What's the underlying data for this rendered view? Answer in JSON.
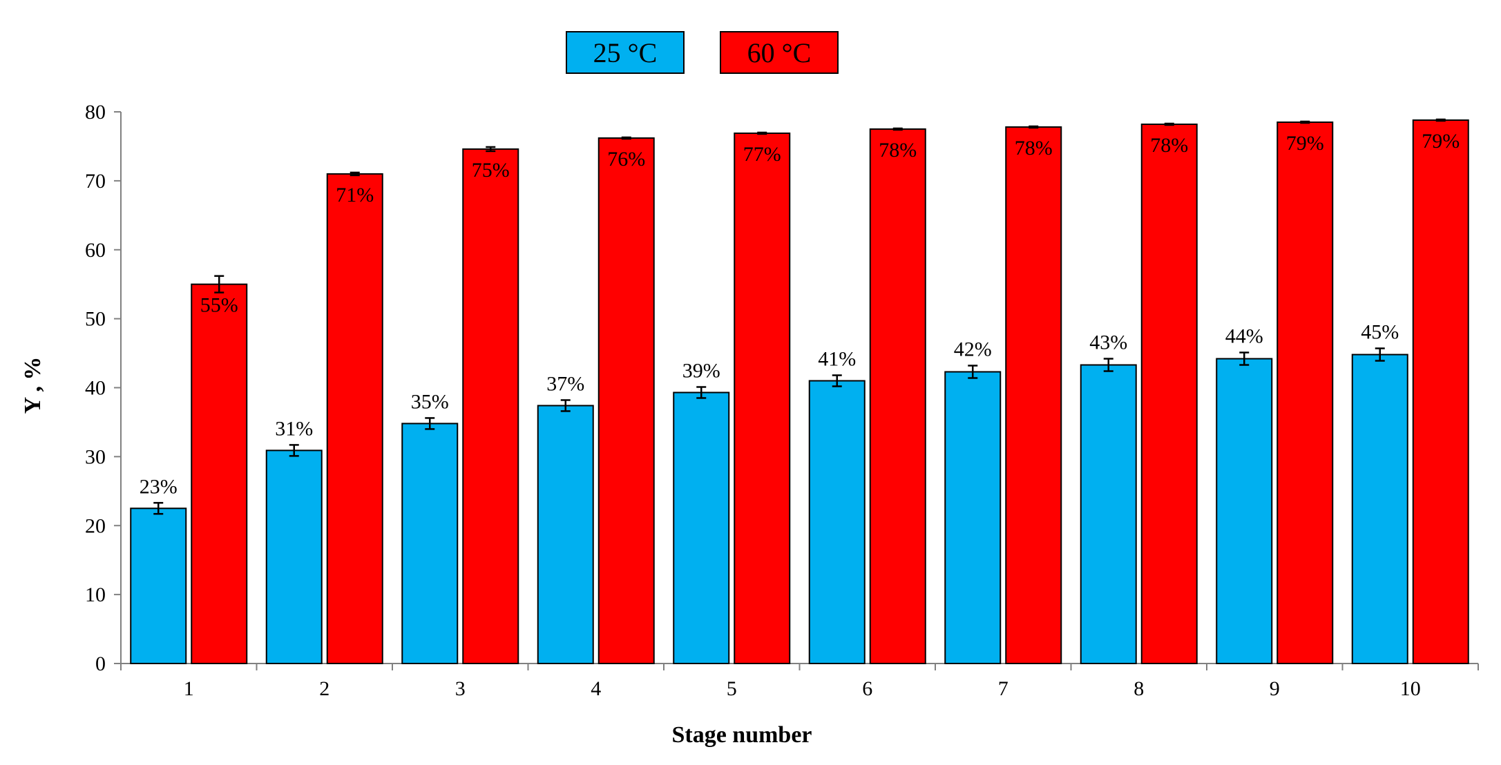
{
  "chart_data": {
    "type": "bar",
    "categories": [
      "1",
      "2",
      "3",
      "4",
      "5",
      "6",
      "7",
      "8",
      "9",
      "10"
    ],
    "series": [
      {
        "name": "25 °C",
        "color": "#00b0f0",
        "values": [
          22.5,
          30.9,
          34.8,
          37.4,
          39.3,
          41.0,
          42.3,
          43.3,
          44.2,
          44.8
        ],
        "error": [
          0.8,
          0.8,
          0.8,
          0.8,
          0.8,
          0.8,
          0.9,
          0.9,
          0.9,
          0.9
        ],
        "labels": [
          "23%",
          "31%",
          "35%",
          "37%",
          "39%",
          "41%",
          "42%",
          "43%",
          "44%",
          "45%"
        ]
      },
      {
        "name": "60 °C",
        "color": "#ff0000",
        "values": [
          55.0,
          71.0,
          74.6,
          76.2,
          76.9,
          77.5,
          77.8,
          78.2,
          78.5,
          78.8
        ],
        "error": [
          1.2,
          0.2,
          0.3,
          0.1,
          0.1,
          0.1,
          0.1,
          0.1,
          0.1,
          0.1
        ],
        "labels": [
          "55%",
          "71%",
          "75%",
          "76%",
          "77%",
          "78%",
          "78%",
          "78%",
          "79%",
          "79%"
        ]
      }
    ],
    "xlabel": "Stage number",
    "ylabel": "Y , %",
    "ylim": [
      0,
      80
    ],
    "yticks": [
      0,
      10,
      20,
      30,
      40,
      50,
      60,
      70,
      80
    ],
    "grid": false,
    "legend": "top-center"
  }
}
